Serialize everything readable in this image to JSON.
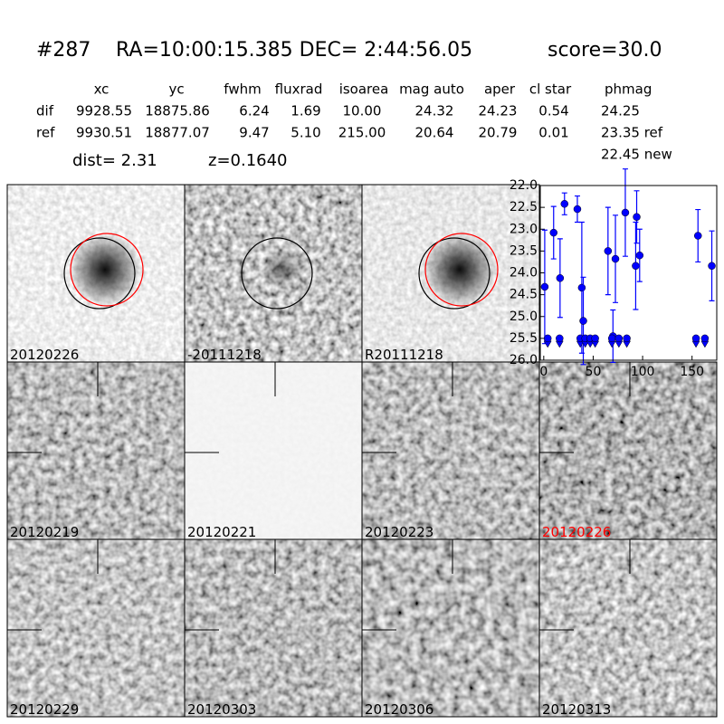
{
  "header": {
    "id": "#287",
    "coords": "RA=10:00:15.385 DEC= 2:44:56.05",
    "score": "score=30.0"
  },
  "table": {
    "columns": [
      "xc",
      "yc",
      "fwhm",
      "fluxrad",
      "isoarea",
      "mag auto",
      "aper",
      "cl star",
      "phmag"
    ],
    "rows": [
      [
        "dif",
        "9928.55",
        "18875.86",
        "6.24",
        "1.69",
        "10.00",
        "24.32",
        "24.23",
        "0.54",
        "24.25"
      ],
      [
        "ref",
        "9930.51",
        "18877.07",
        "9.47",
        "5.10",
        "215.00",
        "20.64",
        "20.79",
        "0.01",
        "23.35 ref"
      ]
    ],
    "extra": "22.45 new"
  },
  "dist": "dist=  2.31",
  "z": "z=0.1640",
  "stamps": [
    {
      "label": "20120226"
    },
    {
      "label": "-20111218"
    },
    {
      "label": "R20111218"
    },
    {
      "label": "20120219"
    },
    {
      "label": "20120221"
    },
    {
      "label": "20120223"
    },
    {
      "label": "20120226",
      "color": "#ff0000"
    },
    {
      "label": "20120229"
    },
    {
      "label": "20120303"
    },
    {
      "label": "20120306"
    },
    {
      "label": "20120313"
    }
  ],
  "chart_data": {
    "type": "scatter",
    "xlim": [
      -3.5,
      175
    ],
    "ylim": [
      26.0,
      22.0
    ],
    "xticks": [
      0,
      50,
      100,
      150
    ],
    "yticks": [
      {
        "value": 22.0,
        "label": "22.0"
      },
      {
        "value": 22.5,
        "label": "22.5"
      },
      {
        "value": 23.0,
        "label": "23.0"
      },
      {
        "value": 23.5,
        "label": "23.5"
      },
      {
        "value": 24.0,
        "label": "24.0"
      },
      {
        "value": 24.5,
        "label": "24.5"
      },
      {
        "value": 25.0,
        "label": "25.0"
      },
      {
        "value": 25.5,
        "label": "25.5"
      },
      {
        "value": 26.0,
        "label": "26.0"
      }
    ],
    "series": [
      {
        "color": "#0000ff",
        "marker": "point",
        "x": [
          1,
          10,
          16.5,
          21,
          34,
          38.5,
          40,
          65,
          70,
          72.5,
          82.5,
          93,
          94,
          97,
          156,
          170
        ],
        "values": [
          24.32,
          23.08,
          24.12,
          22.42,
          22.54,
          24.34,
          25.1,
          23.5,
          25.45,
          23.68,
          22.62,
          23.84,
          22.72,
          23.6,
          23.15,
          23.84
        ],
        "errors": [
          1.3,
          0.6,
          0.9,
          0.25,
          0.3,
          1.5,
          1.0,
          1.0,
          0.6,
          1.0,
          1.0,
          1.0,
          0.6,
          0.6,
          0.6,
          0.8
        ]
      },
      {
        "color": "#0000ff",
        "marker": "upper-limit",
        "x": [
          4,
          16,
          37,
          42,
          47,
          52,
          69,
          76,
          84,
          154,
          163
        ],
        "values": [
          25.5,
          25.5,
          25.5,
          25.5,
          25.5,
          25.5,
          25.5,
          25.5,
          25.5,
          25.5,
          25.5
        ]
      }
    ]
  }
}
